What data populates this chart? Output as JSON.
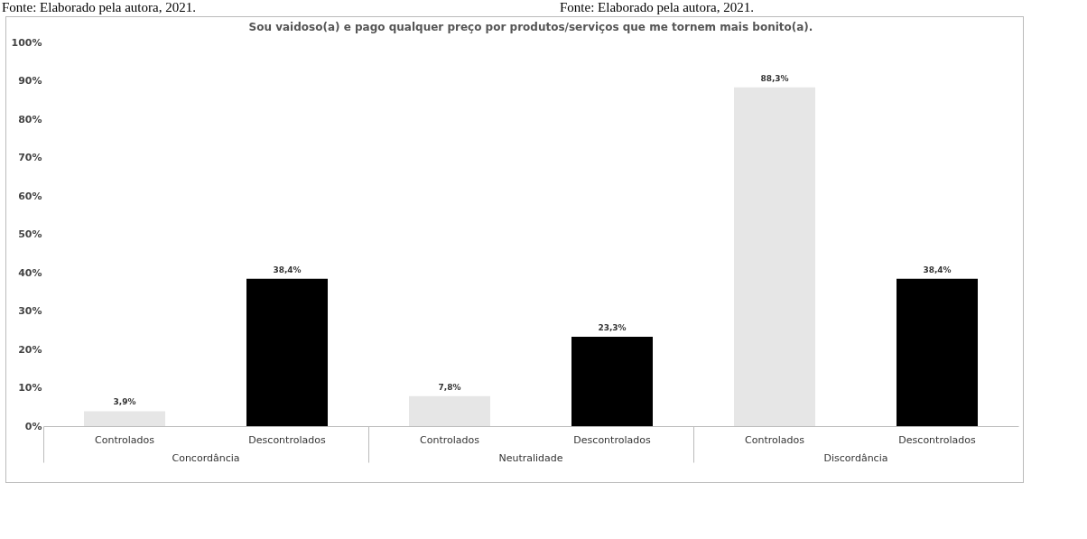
{
  "chart_data": {
    "type": "bar",
    "title": "Sou vaidoso(a)  e pago qualquer preço por produtos/serviços que  me tornem mais bonito(a).",
    "annotations": [
      "Fonte: Elaborado pela autora, 2021.",
      "Fonte: Elaborado pela autora, 2021."
    ],
    "categories": [
      "Concordância",
      "Neutralidade",
      "Discordância"
    ],
    "series": [
      {
        "name": "Controlados",
        "color": "#e6e6e6",
        "values": [
          3.9,
          7.8,
          88.3
        ],
        "value_labels": [
          "3,9%",
          "7,8%",
          "88,3%"
        ]
      },
      {
        "name": "Descontrolados",
        "color": "#000000",
        "values": [
          38.4,
          23.3,
          38.4
        ],
        "value_labels": [
          "38,4%",
          "23,3%",
          "38,4%"
        ]
      }
    ],
    "ylim": [
      0,
      100
    ],
    "yticks": [
      {
        "value": 0,
        "label": "0%"
      },
      {
        "value": 10,
        "label": "10%"
      },
      {
        "value": 20,
        "label": "20%"
      },
      {
        "value": 30,
        "label": "30%"
      },
      {
        "value": 40,
        "label": "40%"
      },
      {
        "value": 50,
        "label": "50%"
      },
      {
        "value": 60,
        "label": "60%"
      },
      {
        "value": 70,
        "label": "70%"
      },
      {
        "value": 80,
        "label": "80%"
      },
      {
        "value": 90,
        "label": "90%"
      },
      {
        "value": 100,
        "label": "100%"
      }
    ],
    "grid": false,
    "legend": false
  }
}
